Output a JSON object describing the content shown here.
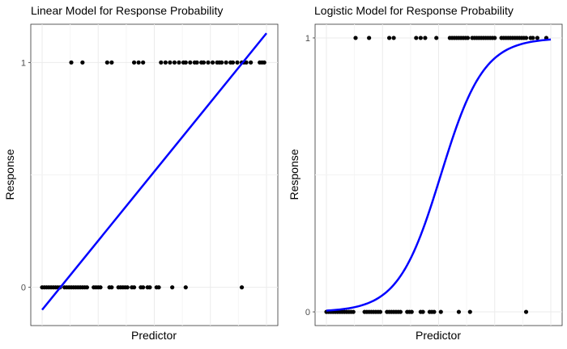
{
  "chart_data": [
    {
      "type": "scatter",
      "title": "Linear Model for Response Probability",
      "xlabel": "Predictor",
      "ylabel": "Response",
      "y_ticks": [
        "0",
        "1"
      ],
      "x_tick_labels_shown": false,
      "grid": true,
      "xlim": [
        0,
        100
      ],
      "ylim": [
        -0.17,
        1.17
      ],
      "fit": {
        "kind": "linear",
        "color": "#0000ff",
        "x": [
          0,
          100
        ],
        "y": [
          -0.1,
          1.13
        ]
      },
      "points_y1": [
        13,
        18,
        29,
        31,
        41,
        43,
        45,
        53,
        55,
        57,
        59,
        61,
        63,
        64,
        66,
        68,
        69,
        71,
        72,
        74,
        76,
        78,
        79,
        80,
        82,
        84,
        85,
        87,
        89,
        90,
        91,
        93,
        97,
        98,
        99
      ],
      "points_y0": [
        0,
        1,
        2,
        3,
        4,
        5,
        6,
        7,
        8,
        10,
        11,
        12,
        13,
        14,
        15,
        16,
        17,
        18,
        19,
        20,
        23,
        24,
        25,
        26,
        30,
        31,
        34,
        35,
        36,
        37,
        38,
        40,
        41,
        44,
        45,
        47,
        48,
        51,
        52,
        58,
        64,
        89
      ]
    },
    {
      "type": "scatter",
      "title": "Logistic Model for Response Probability",
      "xlabel": "Predictor",
      "ylabel": "Response",
      "y_ticks": [
        "0",
        "1"
      ],
      "x_tick_labels_shown": false,
      "grid": true,
      "xlim": [
        0,
        100
      ],
      "ylim": [
        -0.05,
        1.05
      ],
      "fit": {
        "kind": "logistic",
        "color": "#0000ff",
        "midpoint": 51,
        "scale": 9.5
      },
      "points_y1": [
        13,
        19,
        28,
        30,
        40,
        42,
        44,
        49,
        55,
        56,
        57,
        58,
        59,
        60,
        61,
        62,
        63,
        65,
        66,
        67,
        68,
        69,
        70,
        71,
        72,
        73,
        74,
        75,
        78,
        79,
        80,
        81,
        82,
        83,
        84,
        85,
        86,
        87,
        88,
        89,
        91,
        92,
        94,
        98
      ],
      "points_y0": [
        0,
        1,
        2,
        3,
        4,
        5,
        6,
        7,
        8,
        9,
        10,
        11,
        12,
        17,
        18,
        19,
        20,
        21,
        22,
        23,
        24,
        27,
        28,
        29,
        30,
        31,
        32,
        33,
        36,
        37,
        38,
        42,
        43,
        46,
        47,
        48,
        51,
        59,
        64,
        89
      ]
    }
  ]
}
